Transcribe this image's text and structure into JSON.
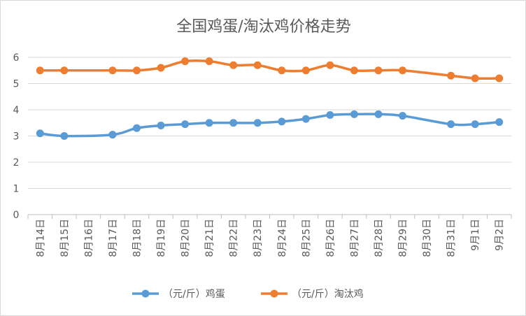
{
  "chart_data": {
    "type": "line",
    "title": "全国鸡蛋/淘汰鸡价格走势",
    "categories": [
      "8月14日",
      "8月15日",
      "8月16日",
      "8月17日",
      "8月18日",
      "8月19日",
      "8月20日",
      "8月21日",
      "8月22日",
      "8月23日",
      "8月24日",
      "8月25日",
      "8月26日",
      "8月27日",
      "8月28日",
      "8月29日",
      "8月30日",
      "8月31日",
      "9月1日",
      "9月2日"
    ],
    "ylim": [
      0,
      6
    ],
    "yticks": [
      "0",
      "1",
      "2",
      "3",
      "4",
      "5",
      "6"
    ],
    "grid": "horizontal",
    "legend_position": "bottom",
    "series": [
      {
        "name": "（元/斤）鸡蛋",
        "color": "#5B9BD5",
        "values": [
          3.1,
          3.0,
          null,
          3.05,
          3.3,
          3.4,
          3.45,
          3.5,
          3.5,
          3.5,
          3.55,
          3.65,
          3.8,
          3.83,
          3.83,
          3.77,
          null,
          3.45,
          3.45,
          3.53
        ]
      },
      {
        "name": "（元/斤）淘汰鸡",
        "color": "#ED7D31",
        "values": [
          5.5,
          5.5,
          null,
          5.5,
          5.5,
          5.6,
          5.85,
          5.85,
          5.7,
          5.7,
          5.5,
          5.5,
          5.7,
          5.5,
          5.5,
          5.5,
          null,
          5.3,
          5.2,
          5.2
        ]
      }
    ]
  }
}
